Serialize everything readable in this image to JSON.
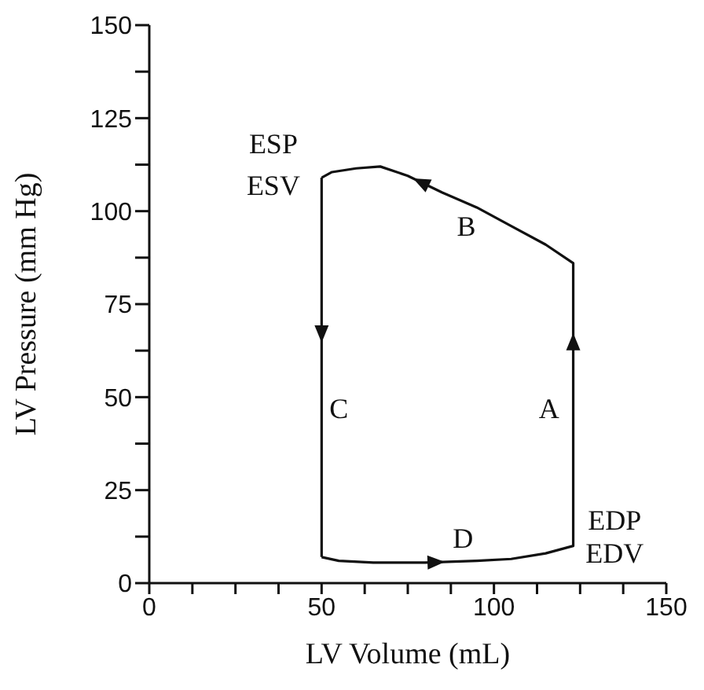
{
  "chart_data": {
    "type": "line",
    "xlabel": "LV Volume (mL)",
    "ylabel": "LV Pressure (mm Hg)",
    "series": [
      {
        "color": "#111111",
        "x": [
          50,
          55,
          65,
          80,
          95,
          105,
          115,
          123,
          123,
          115,
          105,
          95,
          85,
          75,
          67,
          60,
          53,
          50
        ],
        "values": [
          7,
          6,
          5.5,
          5.5,
          6,
          6.5,
          8,
          10,
          86,
          91,
          96,
          101,
          105,
          109.5,
          112,
          111.5,
          110.5,
          109
        ]
      },
      {
        "color": "#111111",
        "x": [
          50,
          50
        ],
        "values": [
          109,
          7
        ]
      }
    ],
    "xlim": [
      0,
      150
    ],
    "ylim": [
      0,
      150
    ],
    "xticks": [
      0,
      {
        "value": 12.5,
        "label": null
      },
      {
        "value": 25,
        "label": null
      },
      {
        "value": 37.5,
        "label": null
      },
      50,
      {
        "value": 62.5,
        "label": null
      },
      {
        "value": 75,
        "label": null
      },
      {
        "value": 87.5,
        "label": null
      },
      100,
      {
        "value": 112.5,
        "label": null
      },
      {
        "value": 125,
        "label": null
      },
      {
        "value": 137.5,
        "label": null
      },
      150
    ],
    "yticks": [
      0,
      {
        "value": 12.5,
        "label": null
      },
      25,
      {
        "value": 37.5,
        "label": null
      },
      50,
      {
        "value": 62.5,
        "label": null
      },
      75,
      {
        "value": 87.5,
        "label": null
      },
      100,
      {
        "value": 112.5,
        "label": null
      },
      125,
      {
        "value": 137.5,
        "label": null
      },
      150
    ],
    "annotations": [
      "ESP",
      "ESV",
      "A",
      "B",
      "C",
      "D",
      "EDP",
      "EDV"
    ],
    "grid": false,
    "marker": "none",
    "line_style": "solid"
  }
}
